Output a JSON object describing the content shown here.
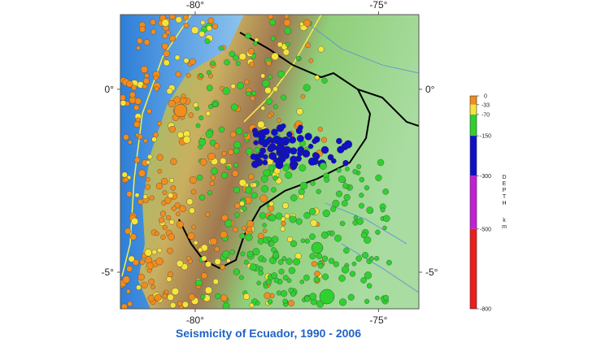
{
  "map": {
    "title": "Seismicity of Ecuador, 1990 - 2006",
    "xlim": [
      -82.04,
      -73.9
    ],
    "ylim": [
      -6.0,
      2.04
    ],
    "xticks": [
      {
        "value": -80,
        "label": "-80°"
      },
      {
        "value": -75,
        "label": "-75°"
      }
    ],
    "yticks": [
      {
        "value": 0,
        "label": "0°"
      },
      {
        "value": -5,
        "label": "-5°"
      }
    ],
    "legend": {
      "title": "DEPTH",
      "unit": "km",
      "range": [
        0,
        -800
      ],
      "ticks": [
        0,
        -33,
        -70,
        -150,
        -300,
        -500,
        -800
      ],
      "colors": [
        "#f28c1c",
        "#f7e43a",
        "#2fd12f",
        "#1010c8",
        "#c41fd6",
        "#ee1c1c"
      ]
    }
  }
}
